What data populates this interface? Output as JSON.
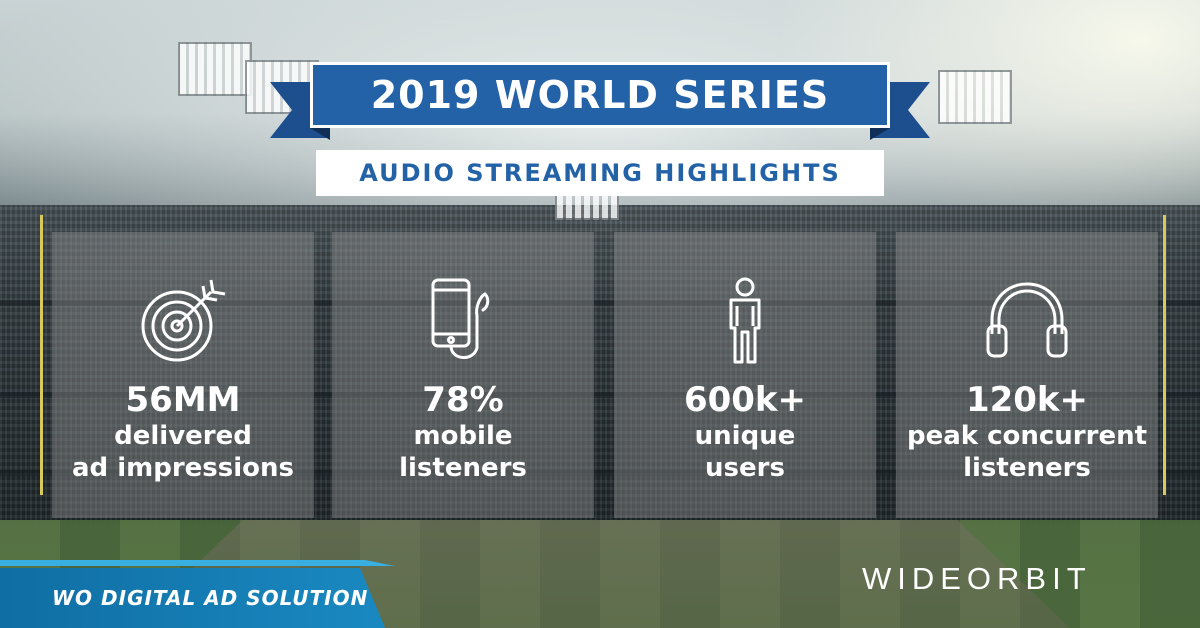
{
  "header": {
    "title": "2019 WORLD SERIES",
    "subtitle": "AUDIO STREAMING HIGHLIGHTS"
  },
  "stats": [
    {
      "icon": "target-icon",
      "value": "56MM",
      "line1": "delivered",
      "line2": "ad impressions"
    },
    {
      "icon": "smartphone-earphones-icon",
      "value": "78%",
      "line1": "mobile",
      "line2": "listeners"
    },
    {
      "icon": "person-icon",
      "value": "600k+",
      "line1": "unique",
      "line2": "users"
    },
    {
      "icon": "headphones-icon",
      "value": "120k+",
      "line1": "peak concurrent",
      "line2": "listeners"
    }
  ],
  "footer": {
    "banner_text": "WO DIGITAL AD SOLUTION",
    "logo_text": "WIDEORBIT"
  },
  "colors": {
    "ribbon_blue": "#2462a8",
    "ribbon_dark": "#1d4f8e",
    "banner_blue": "#1a89c1",
    "text_white": "#ffffff"
  }
}
